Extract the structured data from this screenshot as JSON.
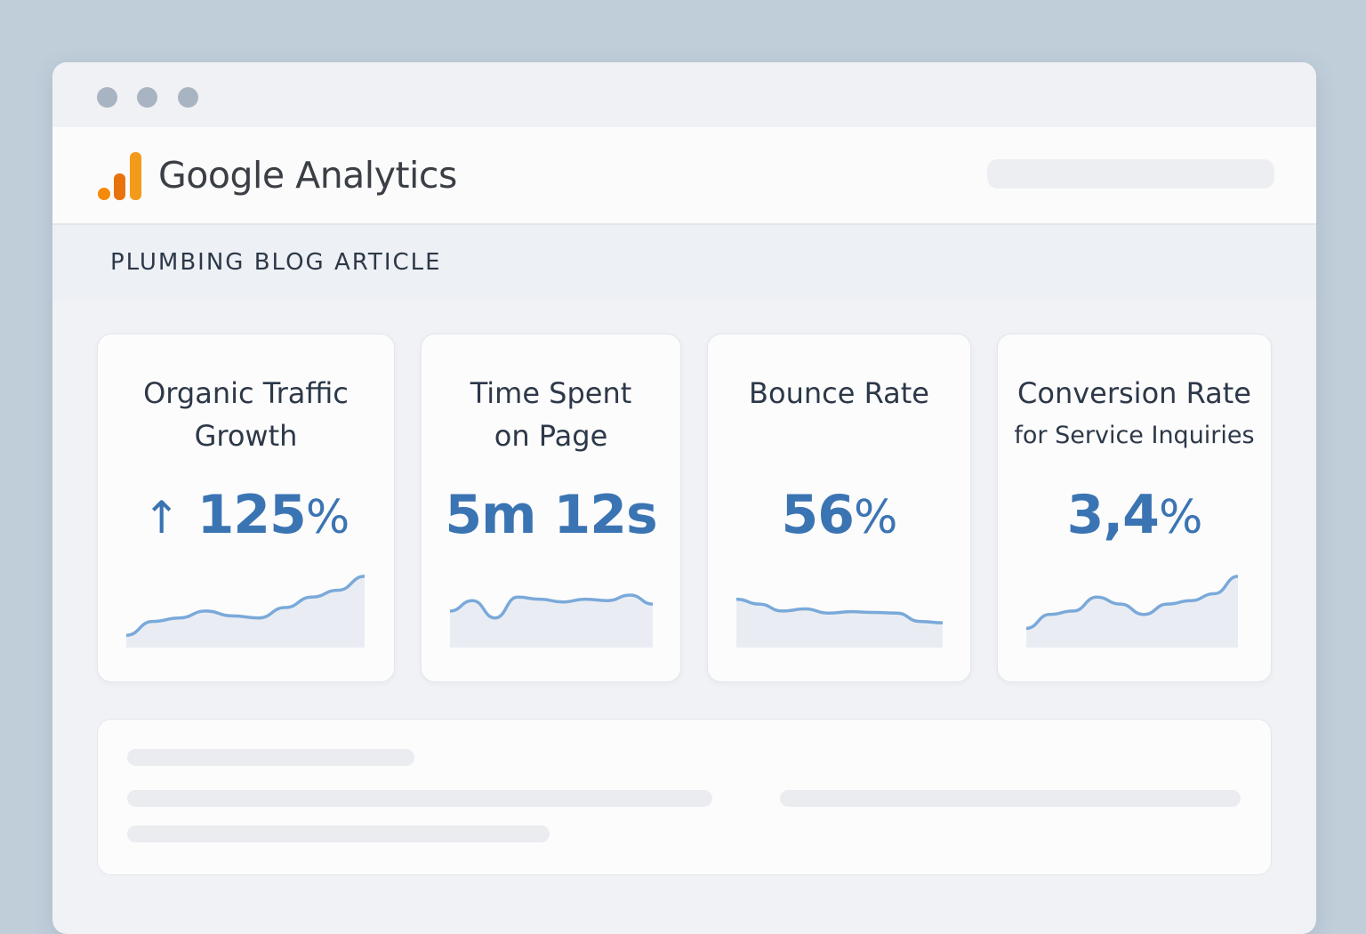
{
  "window": {
    "controls": [
      "close-dot",
      "minimize-dot",
      "maximize-dot"
    ]
  },
  "header": {
    "brand_google": "Google",
    "brand_analytics": "Analytics",
    "logo_colors": [
      "#f58a0a",
      "#e8730c",
      "#f39a1b"
    ]
  },
  "section": {
    "title": "PLUMBING BLOG ARTICLE"
  },
  "metrics": [
    {
      "title_line1": "Organic Traffic",
      "title_line2": "Growth",
      "value": "125",
      "unit": "%",
      "arrow": "↑",
      "trend": [
        0.1,
        0.3,
        0.35,
        0.45,
        0.38,
        0.35,
        0.5,
        0.65,
        0.75,
        0.95
      ]
    },
    {
      "title_line1": "Time Spent",
      "title_line2": "on Page",
      "value": "5m 12s",
      "unit": "",
      "trend": [
        0.45,
        0.6,
        0.35,
        0.65,
        0.62,
        0.58,
        0.62,
        0.6,
        0.68,
        0.55
      ]
    },
    {
      "title_line1": "Bounce Rate",
      "title_line2": "",
      "value": "56",
      "unit": "%",
      "trend": [
        0.62,
        0.55,
        0.45,
        0.48,
        0.42,
        0.44,
        0.43,
        0.42,
        0.3,
        0.28
      ]
    },
    {
      "title_line1": "Conversion Rate",
      "title_line2": "for Service Inquiries",
      "value": "3,4",
      "unit": "%",
      "trend": [
        0.2,
        0.4,
        0.45,
        0.65,
        0.55,
        0.4,
        0.55,
        0.6,
        0.7,
        0.95
      ]
    }
  ],
  "accent_color": "#3b74b3",
  "spark_color": "#7aa9da"
}
